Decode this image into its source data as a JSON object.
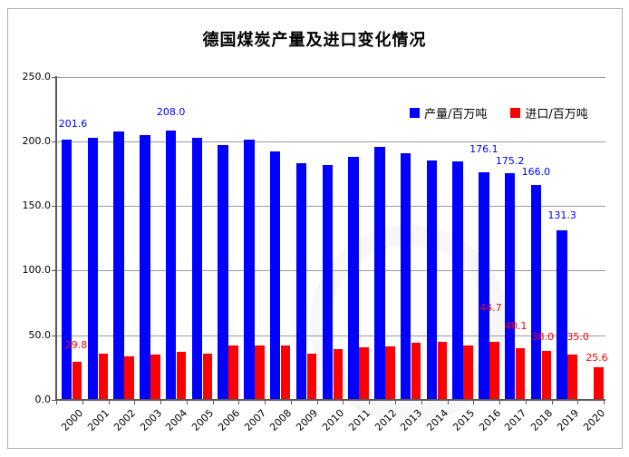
{
  "figure": {
    "title": "德国煤炭产量及进口变化情况"
  },
  "chart_data": {
    "type": "bar",
    "title": "德国煤炭产量及进口变化情况",
    "categories": [
      "2000",
      "2001",
      "2002",
      "2003",
      "2004",
      "2005",
      "2006",
      "2007",
      "2008",
      "2009",
      "2010",
      "2011",
      "2012",
      "2013",
      "2014",
      "2015",
      "2016",
      "2017",
      "2018",
      "2019",
      "2020"
    ],
    "series": [
      {
        "name": "产量/百万吨",
        "color": "#0000FF",
        "values": [
          201.6,
          203.0,
          207.5,
          204.5,
          208.0,
          202.8,
          197.0,
          201.3,
          192.5,
          183.0,
          182.0,
          188.0,
          196.0,
          190.5,
          185.5,
          184.3,
          176.1,
          175.2,
          166.0,
          131.3,
          null
        ],
        "point_labels": {
          "0": "201.6",
          "4": "208.0",
          "16": "176.1",
          "17": "175.2",
          "18": "166.0",
          "19": "131.3"
        }
      },
      {
        "name": "进口/百万吨",
        "color": "#FF0000",
        "values": [
          29.8,
          35.5,
          33.5,
          35.0,
          37.0,
          36.0,
          42.0,
          42.0,
          42.0,
          36.0,
          39.5,
          41.0,
          41.5,
          44.0,
          45.0,
          42.0,
          44.7,
          40.1,
          38.0,
          35.0,
          25.6
        ],
        "point_labels": {
          "0": "29.8",
          "16": "44.7",
          "17": "40.1",
          "18": "38.0",
          "19": "35.0",
          "20": "25.6"
        }
      }
    ],
    "xlabel": "",
    "ylabel": "",
    "ylim": [
      0,
      250
    ],
    "ytick_interval": 50,
    "ytick_labels": [
      "0.0",
      "50.0",
      "100.0",
      "150.0",
      "200.0",
      "250.0"
    ],
    "grid": true,
    "legend_position": "top-right-inside"
  }
}
